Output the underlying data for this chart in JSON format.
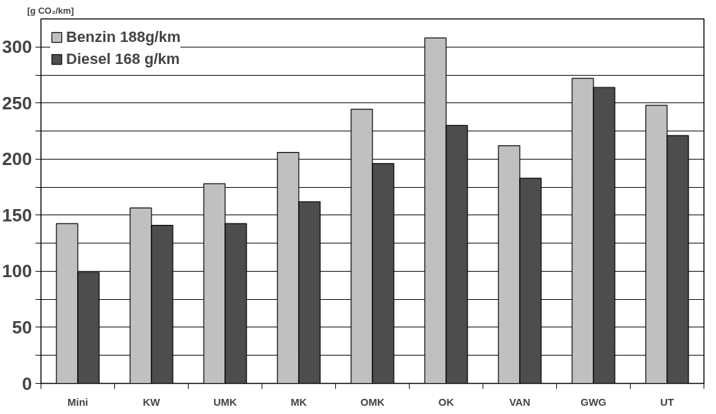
{
  "chart_data": {
    "type": "bar",
    "ylabel": "[g CO₂/km]",
    "categories": [
      "Mini",
      "KW",
      "UMK",
      "MK",
      "OMK",
      "OK",
      "VAN",
      "GWG",
      "UT"
    ],
    "series": [
      {
        "name": "Benzin 188g/km",
        "color": "#c0c0c0",
        "values": [
          142.5,
          156.5,
          178,
          206,
          244.5,
          308,
          212,
          272,
          248
        ]
      },
      {
        "name": "Diesel 168 g/km",
        "color": "#4d4d4d",
        "values": [
          99,
          141,
          142.5,
          162,
          196,
          230,
          183,
          264,
          221
        ]
      }
    ],
    "ylim": [
      0,
      325
    ],
    "yticks": [
      0,
      {
        "value": 25,
        "label": null
      },
      50,
      {
        "value": 75,
        "label": null
      },
      100,
      {
        "value": 125,
        "label": null
      },
      150,
      {
        "value": 175,
        "label": null
      },
      200,
      {
        "value": 225,
        "label": null
      },
      250,
      {
        "value": 275,
        "label": null
      },
      300
    ],
    "grid": "y",
    "legend": "top left"
  }
}
